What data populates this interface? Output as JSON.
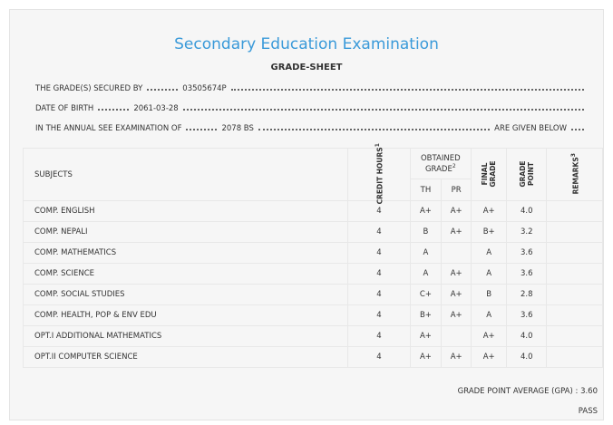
{
  "header": {
    "title": "Secondary Education Examination",
    "subtitle": "GRADE-SHEET"
  },
  "info": [
    {
      "label": "THE GRADE(S) SECURED BY",
      "value": "03505674P"
    },
    {
      "label": "DATE OF BIRTH",
      "value": "2061-03-28"
    },
    {
      "label": "IN THE ANNUAL SEE EXAMINATION OF",
      "value": "2078 BS",
      "suffix": "ARE GIVEN BELOW"
    }
  ],
  "table": {
    "headers": {
      "subjects": "SUBJECTS",
      "credit": {
        "text": "CREDIT HOURS",
        "note": "1"
      },
      "obtained": {
        "text": "OBTAINED GRADE",
        "note": "2"
      },
      "th": "TH",
      "pr": "PR",
      "final": "FINAL GRADE",
      "grade_point": "GRADE POINT",
      "remarks": {
        "text": "REMARKS",
        "note": "3"
      }
    },
    "rows": [
      [
        "COMP. ENGLISH",
        "4",
        "A+",
        "A+",
        "A+",
        "4.0"
      ],
      [
        "COMP. NEPALI",
        "4",
        "B",
        "A+",
        "B+",
        "3.2"
      ],
      [
        "COMP. MATHEMATICS",
        "4",
        "A",
        null,
        "A",
        "3.6"
      ],
      [
        "COMP. SCIENCE",
        "4",
        "A",
        "A+",
        "A",
        "3.6"
      ],
      [
        "COMP. SOCIAL STUDIES",
        "4",
        "C+",
        "A+",
        "B",
        "2.8"
      ],
      [
        "COMP. HEALTH, POP & ENV EDU",
        "4",
        "B+",
        "A+",
        "A",
        "3.6"
      ],
      [
        "OPT.I ADDITIONAL MATHEMATICS",
        "4",
        "A+",
        null,
        "A+",
        "4.0"
      ],
      [
        "OPT.II COMPUTER SCIENCE",
        "4",
        "A+",
        "A+",
        "A+",
        "4.0"
      ]
    ]
  },
  "footer": {
    "gpa_label": "GRADE POINT AVERAGE (GPA) :",
    "gpa": "3.60",
    "result": "PASS"
  }
}
